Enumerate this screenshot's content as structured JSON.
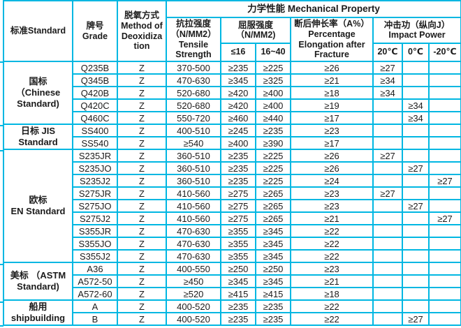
{
  "colors": {
    "grid_line": "#00b7e2",
    "text": "#1b1b1b",
    "background": "#ffffff"
  },
  "chart_data": {
    "type": "table",
    "title": "力学性能 Mechanical Property",
    "header": {
      "standard": "标准Standard",
      "grade": "牌号\nGrade",
      "deoxidization": "脱氧方式\nMethod of\nDeoxidiza\ntion",
      "mechanical": "力学性能 Mechanical Property",
      "tensile": "抗拉强度\n（N/MM2）\nTensile\nStrength",
      "yield": "屈服强度\n（N/MM2)",
      "yield_sub": [
        "≤16",
        "16~40"
      ],
      "elongation": "断后伸长率（A%）\nPercentage\nElongation after\nFracture",
      "impact": "冲击功（纵向J）\nImpact Power",
      "impact_sub": [
        "20℃",
        "0℃",
        "-20℃"
      ]
    },
    "sections": [
      {
        "standard": "国标\n（Chinese\nStandard)",
        "rows": [
          [
            "Q235B",
            "Z",
            "370-500",
            "≥235",
            "≥225",
            "≥26",
            "≥27",
            "",
            ""
          ],
          [
            "Q345B",
            "Z",
            "470-630",
            "≥345",
            "≥325",
            "≥21",
            "≥34",
            "",
            ""
          ],
          [
            "Q420B",
            "Z",
            "520-680",
            "≥420",
            "≥400",
            "≥18",
            "≥34",
            "",
            ""
          ],
          [
            "Q420C",
            "Z",
            "520-680",
            "≥420",
            "≥400",
            "≥19",
            "",
            "≥34",
            ""
          ],
          [
            "Q460C",
            "Z",
            "550-720",
            "≥460",
            "≥440",
            "≥17",
            "",
            "≥34",
            ""
          ]
        ]
      },
      {
        "standard": "日标 JIS\nStandard",
        "rows": [
          [
            "SS400",
            "Z",
            "400-510",
            "≥245",
            "≥235",
            "≥23",
            "",
            "",
            ""
          ],
          [
            "SS540",
            "Z",
            "≥540",
            "≥400",
            "≥390",
            "≥17",
            "",
            "",
            ""
          ]
        ]
      },
      {
        "standard": "欧标\nEN Standard",
        "rows": [
          [
            "S235JR",
            "Z",
            "360-510",
            "≥235",
            "≥225",
            "≥26",
            "≥27",
            "",
            ""
          ],
          [
            "S235JO",
            "Z",
            "360-510",
            "≥235",
            "≥225",
            "≥26",
            "",
            "≥27",
            ""
          ],
          [
            "S235J2",
            "Z",
            "360-510",
            "≥235",
            "≥225",
            "≥24",
            "",
            "",
            "≥27"
          ],
          [
            "S275JR",
            "Z",
            "410-560",
            "≥275",
            "≥265",
            "≥23",
            "≥27",
            "",
            ""
          ],
          [
            "S275JO",
            "Z",
            "410-560",
            "≥275",
            "≥265",
            "≥23",
            "",
            "≥27",
            ""
          ],
          [
            "S275J2",
            "Z",
            "410-560",
            "≥275",
            "≥265",
            "≥21",
            "",
            "",
            "≥27"
          ],
          [
            "S355JR",
            "Z",
            "470-630",
            "≥355",
            "≥345",
            "≥22",
            "",
            "",
            ""
          ],
          [
            "S355JO",
            "Z",
            "470-630",
            "≥355",
            "≥345",
            "≥22",
            "",
            "",
            ""
          ],
          [
            "S355J2",
            "Z",
            "470-630",
            "≥355",
            "≥345",
            "≥22",
            "",
            "",
            ""
          ]
        ]
      },
      {
        "standard": "美标 （ASTM\nStandard)",
        "rows": [
          [
            "A36",
            "Z",
            "400-550",
            "≥250",
            "≥250",
            "≥23",
            "",
            "",
            ""
          ],
          [
            "A572-50",
            "Z",
            "≥450",
            "≥345",
            "≥345",
            "≥21",
            "",
            "",
            ""
          ],
          [
            "A572-60",
            "Z",
            "≥520",
            "≥415",
            "≥415",
            "≥18",
            "",
            "",
            ""
          ]
        ]
      },
      {
        "standard": "船用\nshipbuilding",
        "rows": [
          [
            "A",
            "Z",
            "400-520",
            "≥235",
            "≥235",
            "≥22",
            "",
            "",
            ""
          ],
          [
            "B",
            "Z",
            "400-520",
            "≥235",
            "≥235",
            "≥22",
            "",
            "≥27",
            ""
          ]
        ]
      }
    ]
  }
}
